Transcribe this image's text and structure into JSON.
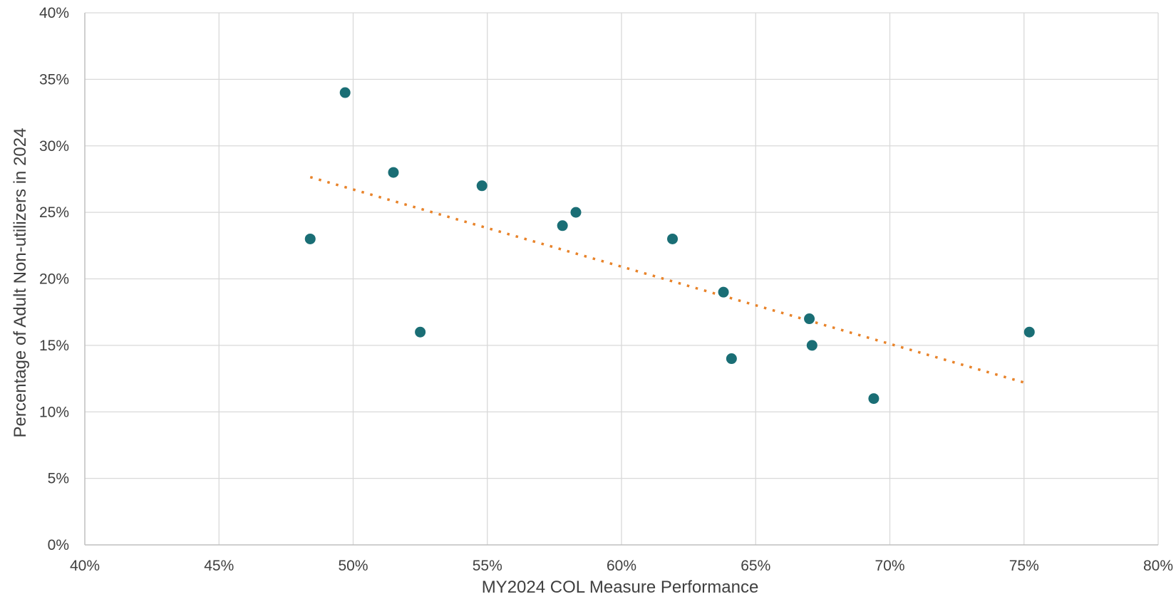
{
  "chart_data": {
    "type": "scatter",
    "title": "",
    "xlabel": "MY2024 COL Measure Performance",
    "ylabel": "Percentage of Adult Non-utilizers in 2024",
    "xlim": [
      0.4,
      0.8
    ],
    "ylim": [
      0.0,
      0.4
    ],
    "x_ticks": [
      "40%",
      "45%",
      "50%",
      "55%",
      "60%",
      "65%",
      "70%",
      "75%",
      "80%"
    ],
    "y_ticks": [
      "0%",
      "5%",
      "10%",
      "15%",
      "20%",
      "25%",
      "30%",
      "35%",
      "40%"
    ],
    "x_tick_values": [
      0.4,
      0.45,
      0.5,
      0.55,
      0.6,
      0.65,
      0.7,
      0.75,
      0.8
    ],
    "y_tick_values": [
      0.0,
      0.05,
      0.1,
      0.15,
      0.2,
      0.25,
      0.3,
      0.35,
      0.4
    ],
    "grid": true,
    "legend": "none",
    "series": [
      {
        "points": [
          {
            "x": 0.484,
            "y": 0.23
          },
          {
            "x": 0.497,
            "y": 0.34
          },
          {
            "x": 0.515,
            "y": 0.28
          },
          {
            "x": 0.525,
            "y": 0.16
          },
          {
            "x": 0.548,
            "y": 0.27
          },
          {
            "x": 0.578,
            "y": 0.24
          },
          {
            "x": 0.583,
            "y": 0.25
          },
          {
            "x": 0.619,
            "y": 0.23
          },
          {
            "x": 0.638,
            "y": 0.19
          },
          {
            "x": 0.641,
            "y": 0.14
          },
          {
            "x": 0.67,
            "y": 0.17
          },
          {
            "x": 0.671,
            "y": 0.15
          },
          {
            "x": 0.694,
            "y": 0.11
          },
          {
            "x": 0.752,
            "y": 0.16
          }
        ]
      }
    ],
    "trendline": {
      "type": "linear",
      "x_start": 0.484,
      "y_start": 0.2765,
      "x_end": 0.751,
      "y_end": 0.1215
    },
    "colors": {
      "points": "#1a6e75",
      "trendline": "#e8832a",
      "grid": "#d9d9d9",
      "axis": "#bfbfbf",
      "text": "#404040"
    }
  }
}
